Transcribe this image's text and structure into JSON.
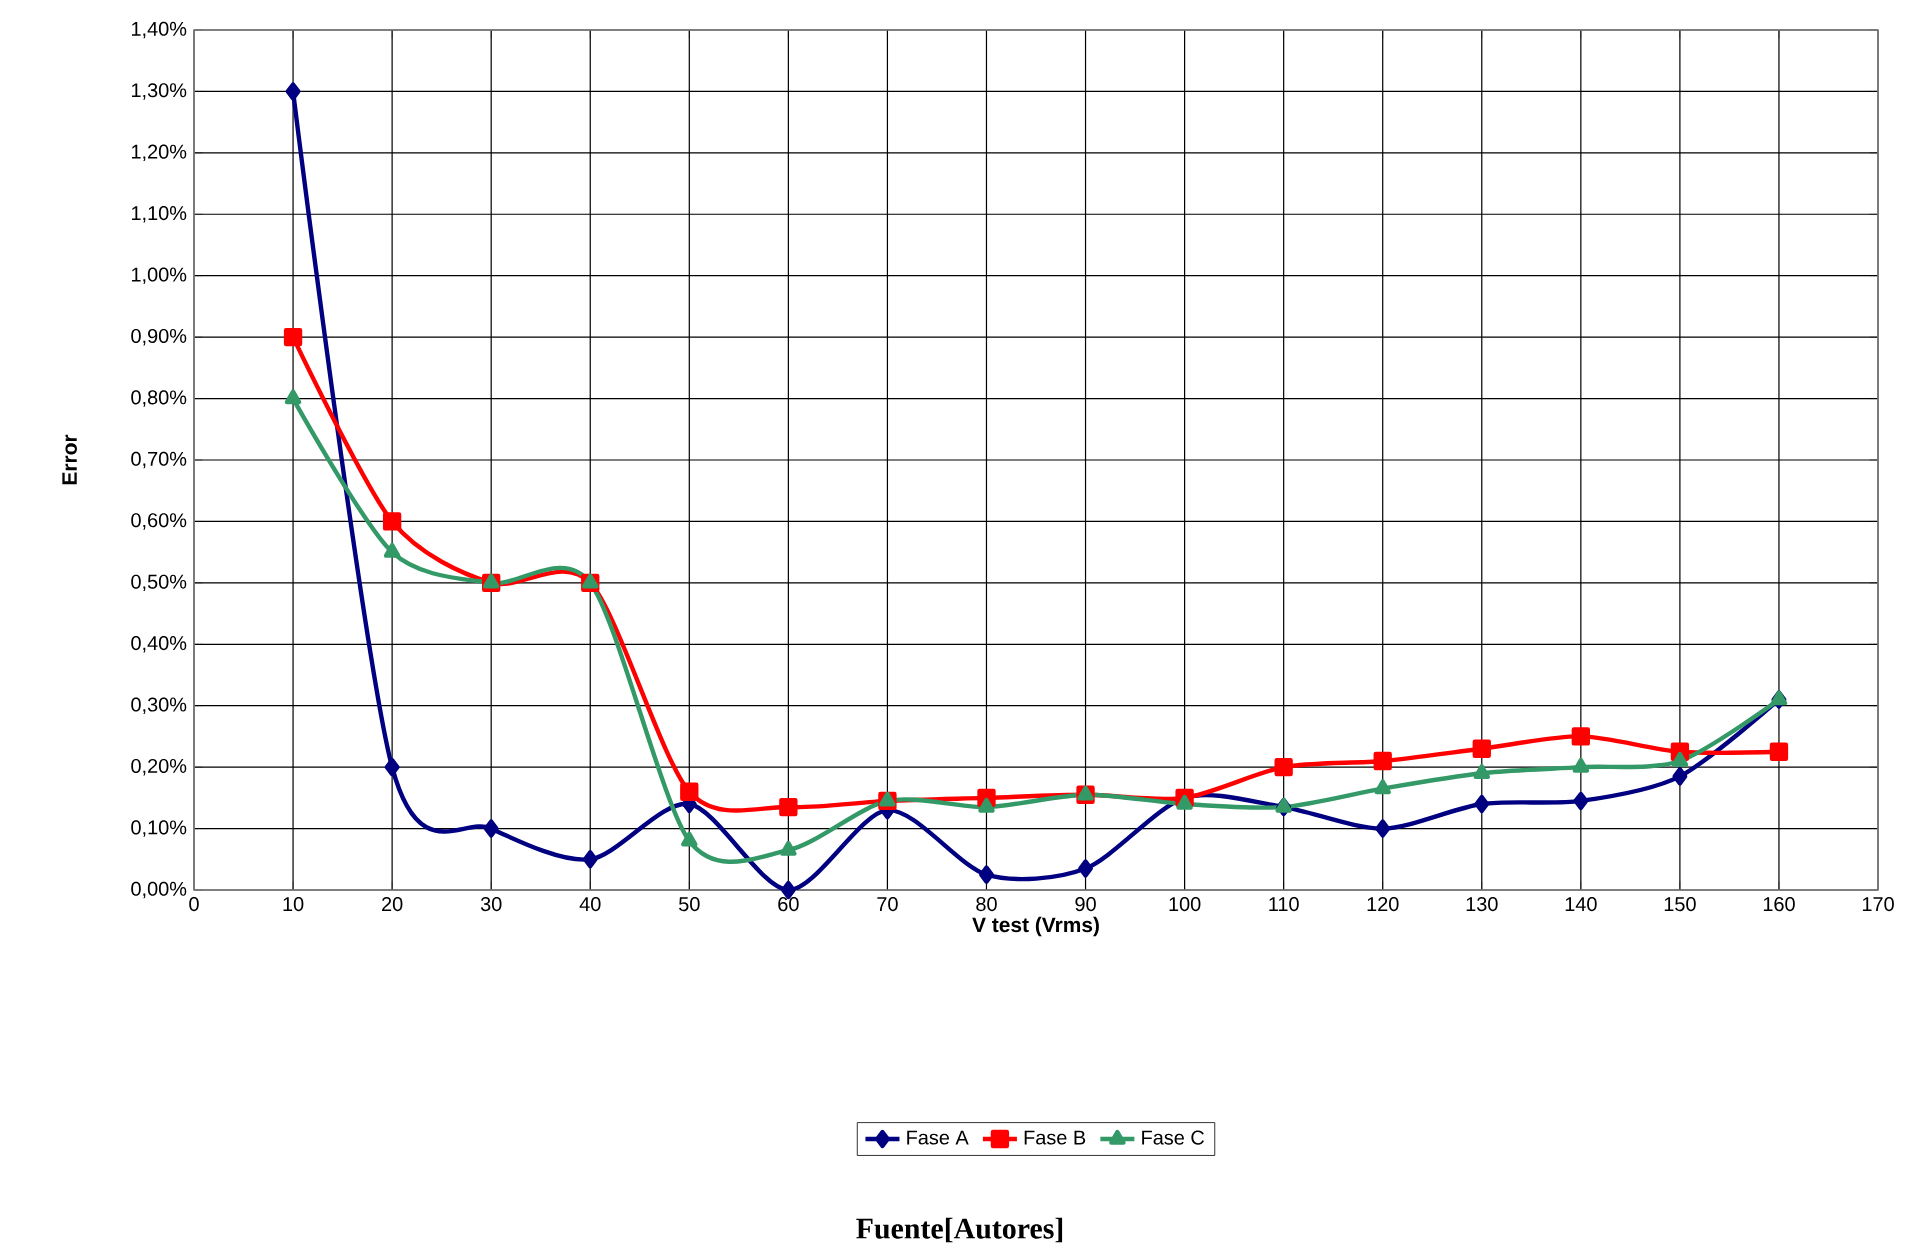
{
  "chart_data": {
    "type": "line",
    "xlabel": "V test (Vrms)",
    "ylabel": "Error",
    "x": [
      10,
      20,
      30,
      40,
      50,
      60,
      70,
      80,
      90,
      100,
      110,
      120,
      130,
      140,
      150,
      160
    ],
    "series": [
      {
        "name": "Fase A",
        "color": "#000080",
        "marker": "diamond",
        "values": [
          1.3,
          0.2,
          0.1,
          0.05,
          0.14,
          0.0,
          0.13,
          0.025,
          0.035,
          0.15,
          0.135,
          0.1,
          0.14,
          0.145,
          0.185,
          0.31
        ]
      },
      {
        "name": "Fase B",
        "color": "#ff0000",
        "marker": "square",
        "values": [
          0.9,
          0.6,
          0.5,
          0.5,
          0.16,
          0.135,
          0.145,
          0.15,
          0.155,
          0.15,
          0.2,
          0.21,
          0.23,
          0.25,
          0.225,
          0.225
        ]
      },
      {
        "name": "Fase C",
        "color": "#339966",
        "marker": "triangle",
        "values": [
          0.8,
          0.55,
          0.5,
          0.5,
          0.08,
          0.065,
          0.145,
          0.135,
          0.155,
          0.14,
          0.135,
          0.165,
          0.19,
          0.2,
          0.21,
          0.31
        ]
      }
    ],
    "xlim": [
      0,
      170
    ],
    "xticks": [
      0,
      10,
      20,
      30,
      40,
      50,
      60,
      70,
      80,
      90,
      100,
      110,
      120,
      130,
      140,
      150,
      160,
      170
    ],
    "ylim": [
      0,
      1.4
    ],
    "yticks": [
      {
        "value": 0,
        "label": "0,00%"
      },
      {
        "value": 0.1,
        "label": "0,10%"
      },
      {
        "value": 0.2,
        "label": "0,20%"
      },
      {
        "value": 0.3,
        "label": "0,30%"
      },
      {
        "value": 0.4,
        "label": "0,40%"
      },
      {
        "value": 0.5,
        "label": "0,50%"
      },
      {
        "value": 0.6,
        "label": "0,60%"
      },
      {
        "value": 0.7,
        "label": "0,70%"
      },
      {
        "value": 0.8,
        "label": "0,80%"
      },
      {
        "value": 0.9,
        "label": "0,90%"
      },
      {
        "value": 1.0,
        "label": "1,00%"
      },
      {
        "value": 1.1,
        "label": "1,10%"
      },
      {
        "value": 1.2,
        "label": "1,20%"
      },
      {
        "value": 1.3,
        "label": "1,30%"
      },
      {
        "value": 1.4,
        "label": "1,40%"
      }
    ],
    "grid": true,
    "legend": "bottom",
    "line_style": "solid",
    "annotations": [
      "**Fuente[Autores]**"
    ]
  }
}
